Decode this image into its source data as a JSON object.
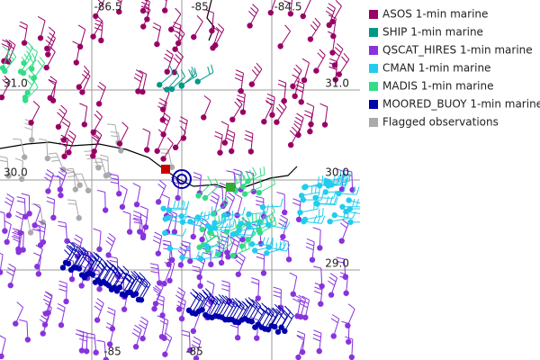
{
  "map": {
    "lon_labels_top": [
      "-86.5",
      "-85",
      "-84.5"
    ],
    "lon_labels_bottom": [
      "-85",
      "-85"
    ],
    "lat_labels_right": [
      "31.0",
      "30.0",
      "29.0"
    ],
    "lat_labels_left": [
      "31.0",
      "30.0"
    ]
  },
  "legend": [
    {
      "label": "ASOS 1-min marine",
      "color": "#990066"
    },
    {
      "label": "SHIP 1-min marine",
      "color": "#009988"
    },
    {
      "label": "QSCAT_HIRES 1-min marine",
      "color": "#8833dd"
    },
    {
      "label": "CMAN 1-min marine",
      "color": "#22ccee"
    },
    {
      "label": "MADIS 1-min marine",
      "color": "#33dd88"
    },
    {
      "label": "MOORED_BUOY 1-min marine",
      "color": "#0000aa"
    },
    {
      "label": "Flagged observations",
      "color": "#aaaaaa"
    }
  ]
}
